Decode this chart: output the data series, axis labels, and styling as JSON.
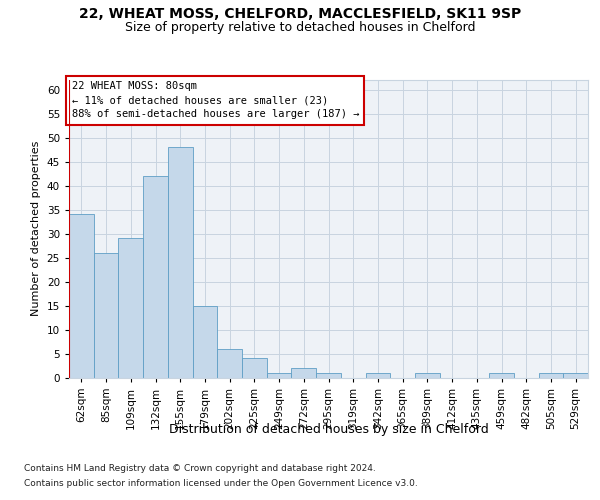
{
  "title1": "22, WHEAT MOSS, CHELFORD, MACCLESFIELD, SK11 9SP",
  "title2": "Size of property relative to detached houses in Chelford",
  "xlabel": "Distribution of detached houses by size in Chelford",
  "ylabel": "Number of detached properties",
  "footnote1": "Contains HM Land Registry data © Crown copyright and database right 2024.",
  "footnote2": "Contains public sector information licensed under the Open Government Licence v3.0.",
  "annotation_line1": "22 WHEAT MOSS: 80sqm",
  "annotation_line2": "← 11% of detached houses are smaller (23)",
  "annotation_line3": "88% of semi-detached houses are larger (187) →",
  "bar_categories": [
    "62sqm",
    "85sqm",
    "109sqm",
    "132sqm",
    "155sqm",
    "179sqm",
    "202sqm",
    "225sqm",
    "249sqm",
    "272sqm",
    "295sqm",
    "319sqm",
    "342sqm",
    "365sqm",
    "389sqm",
    "412sqm",
    "435sqm",
    "459sqm",
    "482sqm",
    "505sqm",
    "529sqm"
  ],
  "bar_values": [
    34,
    26,
    29,
    42,
    48,
    15,
    6,
    4,
    1,
    2,
    1,
    0,
    1,
    0,
    1,
    0,
    0,
    1,
    0,
    1,
    1
  ],
  "bar_color": "#c5d8ea",
  "bar_edge_color": "#5f9ec5",
  "vline_color": "#cc0000",
  "ylim": [
    0,
    62
  ],
  "yticks": [
    0,
    5,
    10,
    15,
    20,
    25,
    30,
    35,
    40,
    45,
    50,
    55,
    60
  ],
  "grid_color": "#c8d4e0",
  "bg_color": "#eef2f7",
  "annotation_box_color": "#ffffff",
  "annotation_box_edge": "#cc0000",
  "title1_fontsize": 10,
  "title2_fontsize": 9,
  "xlabel_fontsize": 9,
  "ylabel_fontsize": 8,
  "tick_fontsize": 7.5,
  "annotation_fontsize": 7.5,
  "footnote_fontsize": 6.5
}
